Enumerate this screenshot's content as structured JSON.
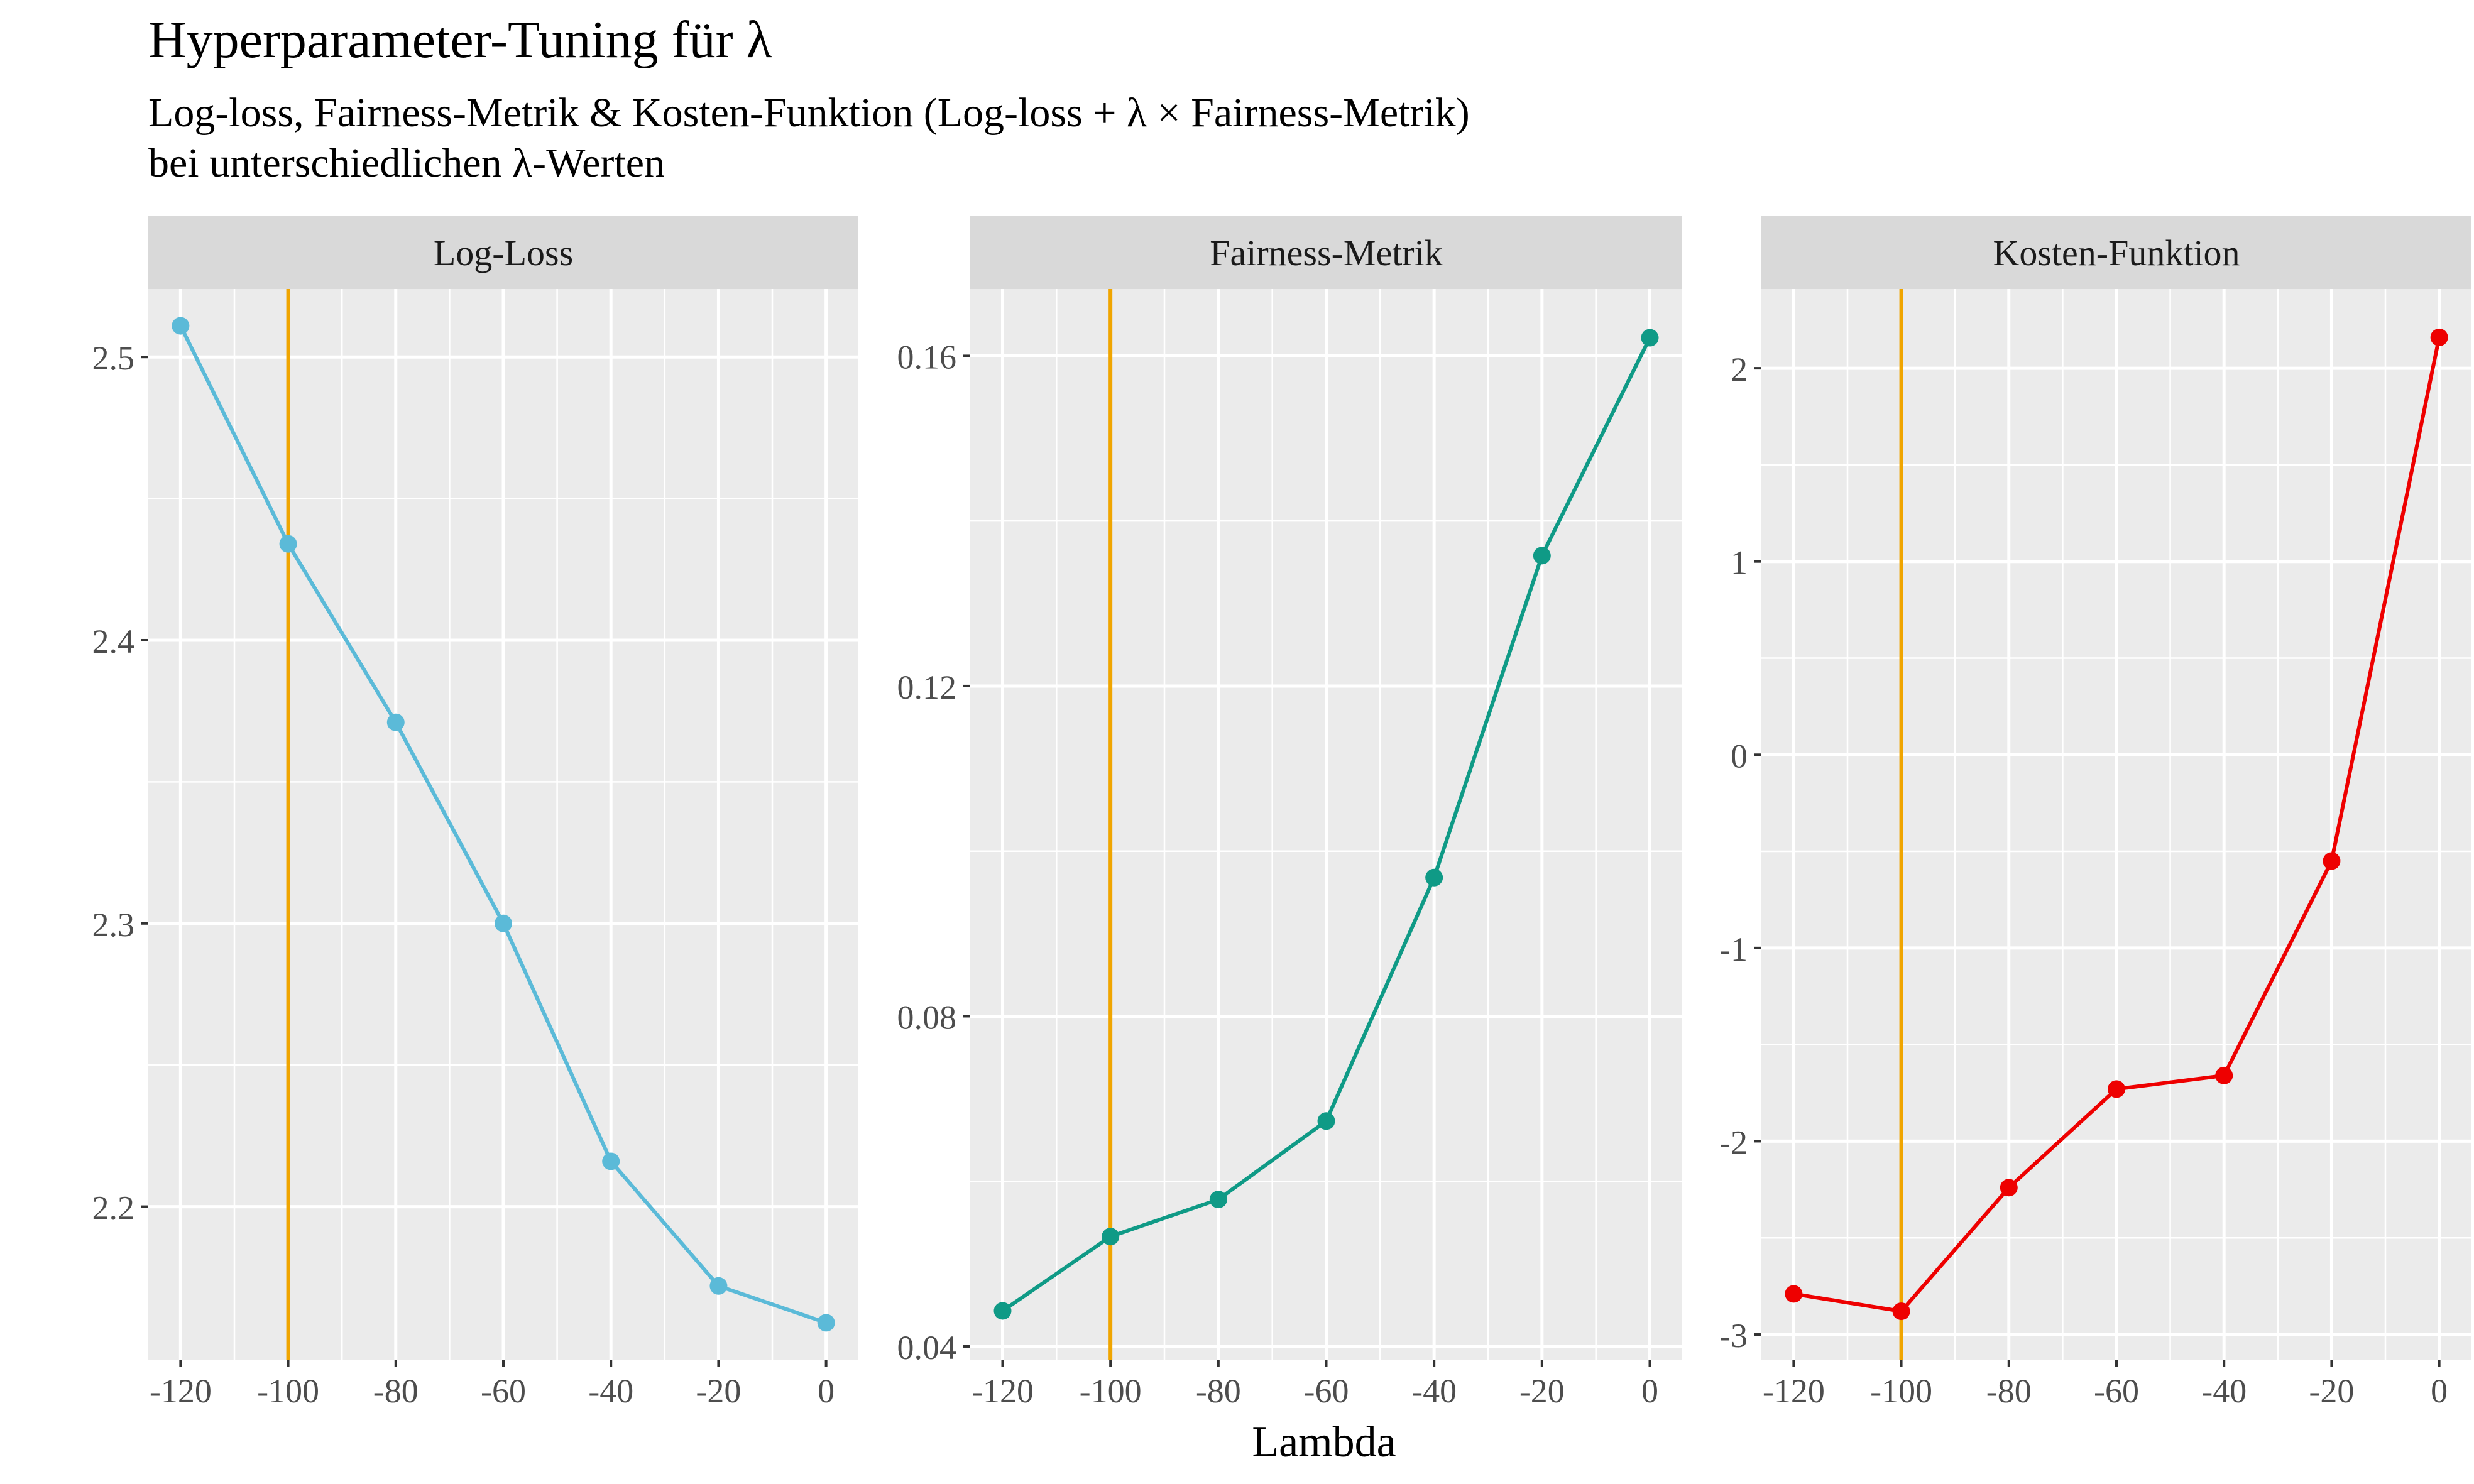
{
  "title": "Hyperparameter-Tuning für λ",
  "subtitle": [
    "Log-loss, Fairness-Metrik & Kosten-Funktion (Log-loss + λ × Fairness-Metrik)",
    "bei unterschiedlichen λ-Werten"
  ],
  "chart_data": {
    "type": "line",
    "xlabel": "Lambda",
    "x": [
      -120,
      -100,
      -80,
      -60,
      -40,
      -20,
      0
    ],
    "x_ticks": [
      -120,
      -100,
      -80,
      -60,
      -40,
      -20,
      0
    ],
    "x_tick_labels": [
      "-120",
      "-100",
      "-80",
      "-60",
      "-40",
      "-20",
      "0"
    ],
    "vline_x": -100,
    "vline_color": "#F0A500",
    "grid": true,
    "panel_background": "#EBEBEB",
    "strip_background": "#D9D9D9",
    "panels": [
      {
        "name": "Log-Loss",
        "color": "#5BBAD8",
        "values": [
          2.511,
          2.434,
          2.371,
          2.3,
          2.216,
          2.172,
          2.159
        ],
        "ylim": [
          2.146,
          2.524
        ],
        "y_ticks": [
          2.2,
          2.3,
          2.4,
          2.5
        ],
        "y_tick_labels": [
          "2.2",
          "2.3",
          "2.4",
          "2.5"
        ]
      },
      {
        "name": "Fairness-Metrik",
        "color": "#0F9A86",
        "values": [
          0.0443,
          0.0533,
          0.0578,
          0.0673,
          0.0968,
          0.1358,
          0.1622
        ],
        "ylim": [
          0.0384,
          0.1681
        ],
        "y_ticks": [
          0.04,
          0.08,
          0.12,
          0.16
        ],
        "y_tick_labels": [
          "0.04",
          "0.08",
          "0.12",
          "0.16"
        ]
      },
      {
        "name": "Kosten-Funktion",
        "color": "#EE0000",
        "values": [
          -2.79,
          -2.88,
          -2.24,
          -1.73,
          -1.66,
          -0.55,
          2.16
        ],
        "ylim": [
          -3.13,
          2.41
        ],
        "y_ticks": [
          -3,
          -2,
          -1,
          0,
          1,
          2
        ],
        "y_tick_labels": [
          "-3",
          "-2",
          "-1",
          "0",
          "1",
          "2"
        ]
      }
    ]
  }
}
